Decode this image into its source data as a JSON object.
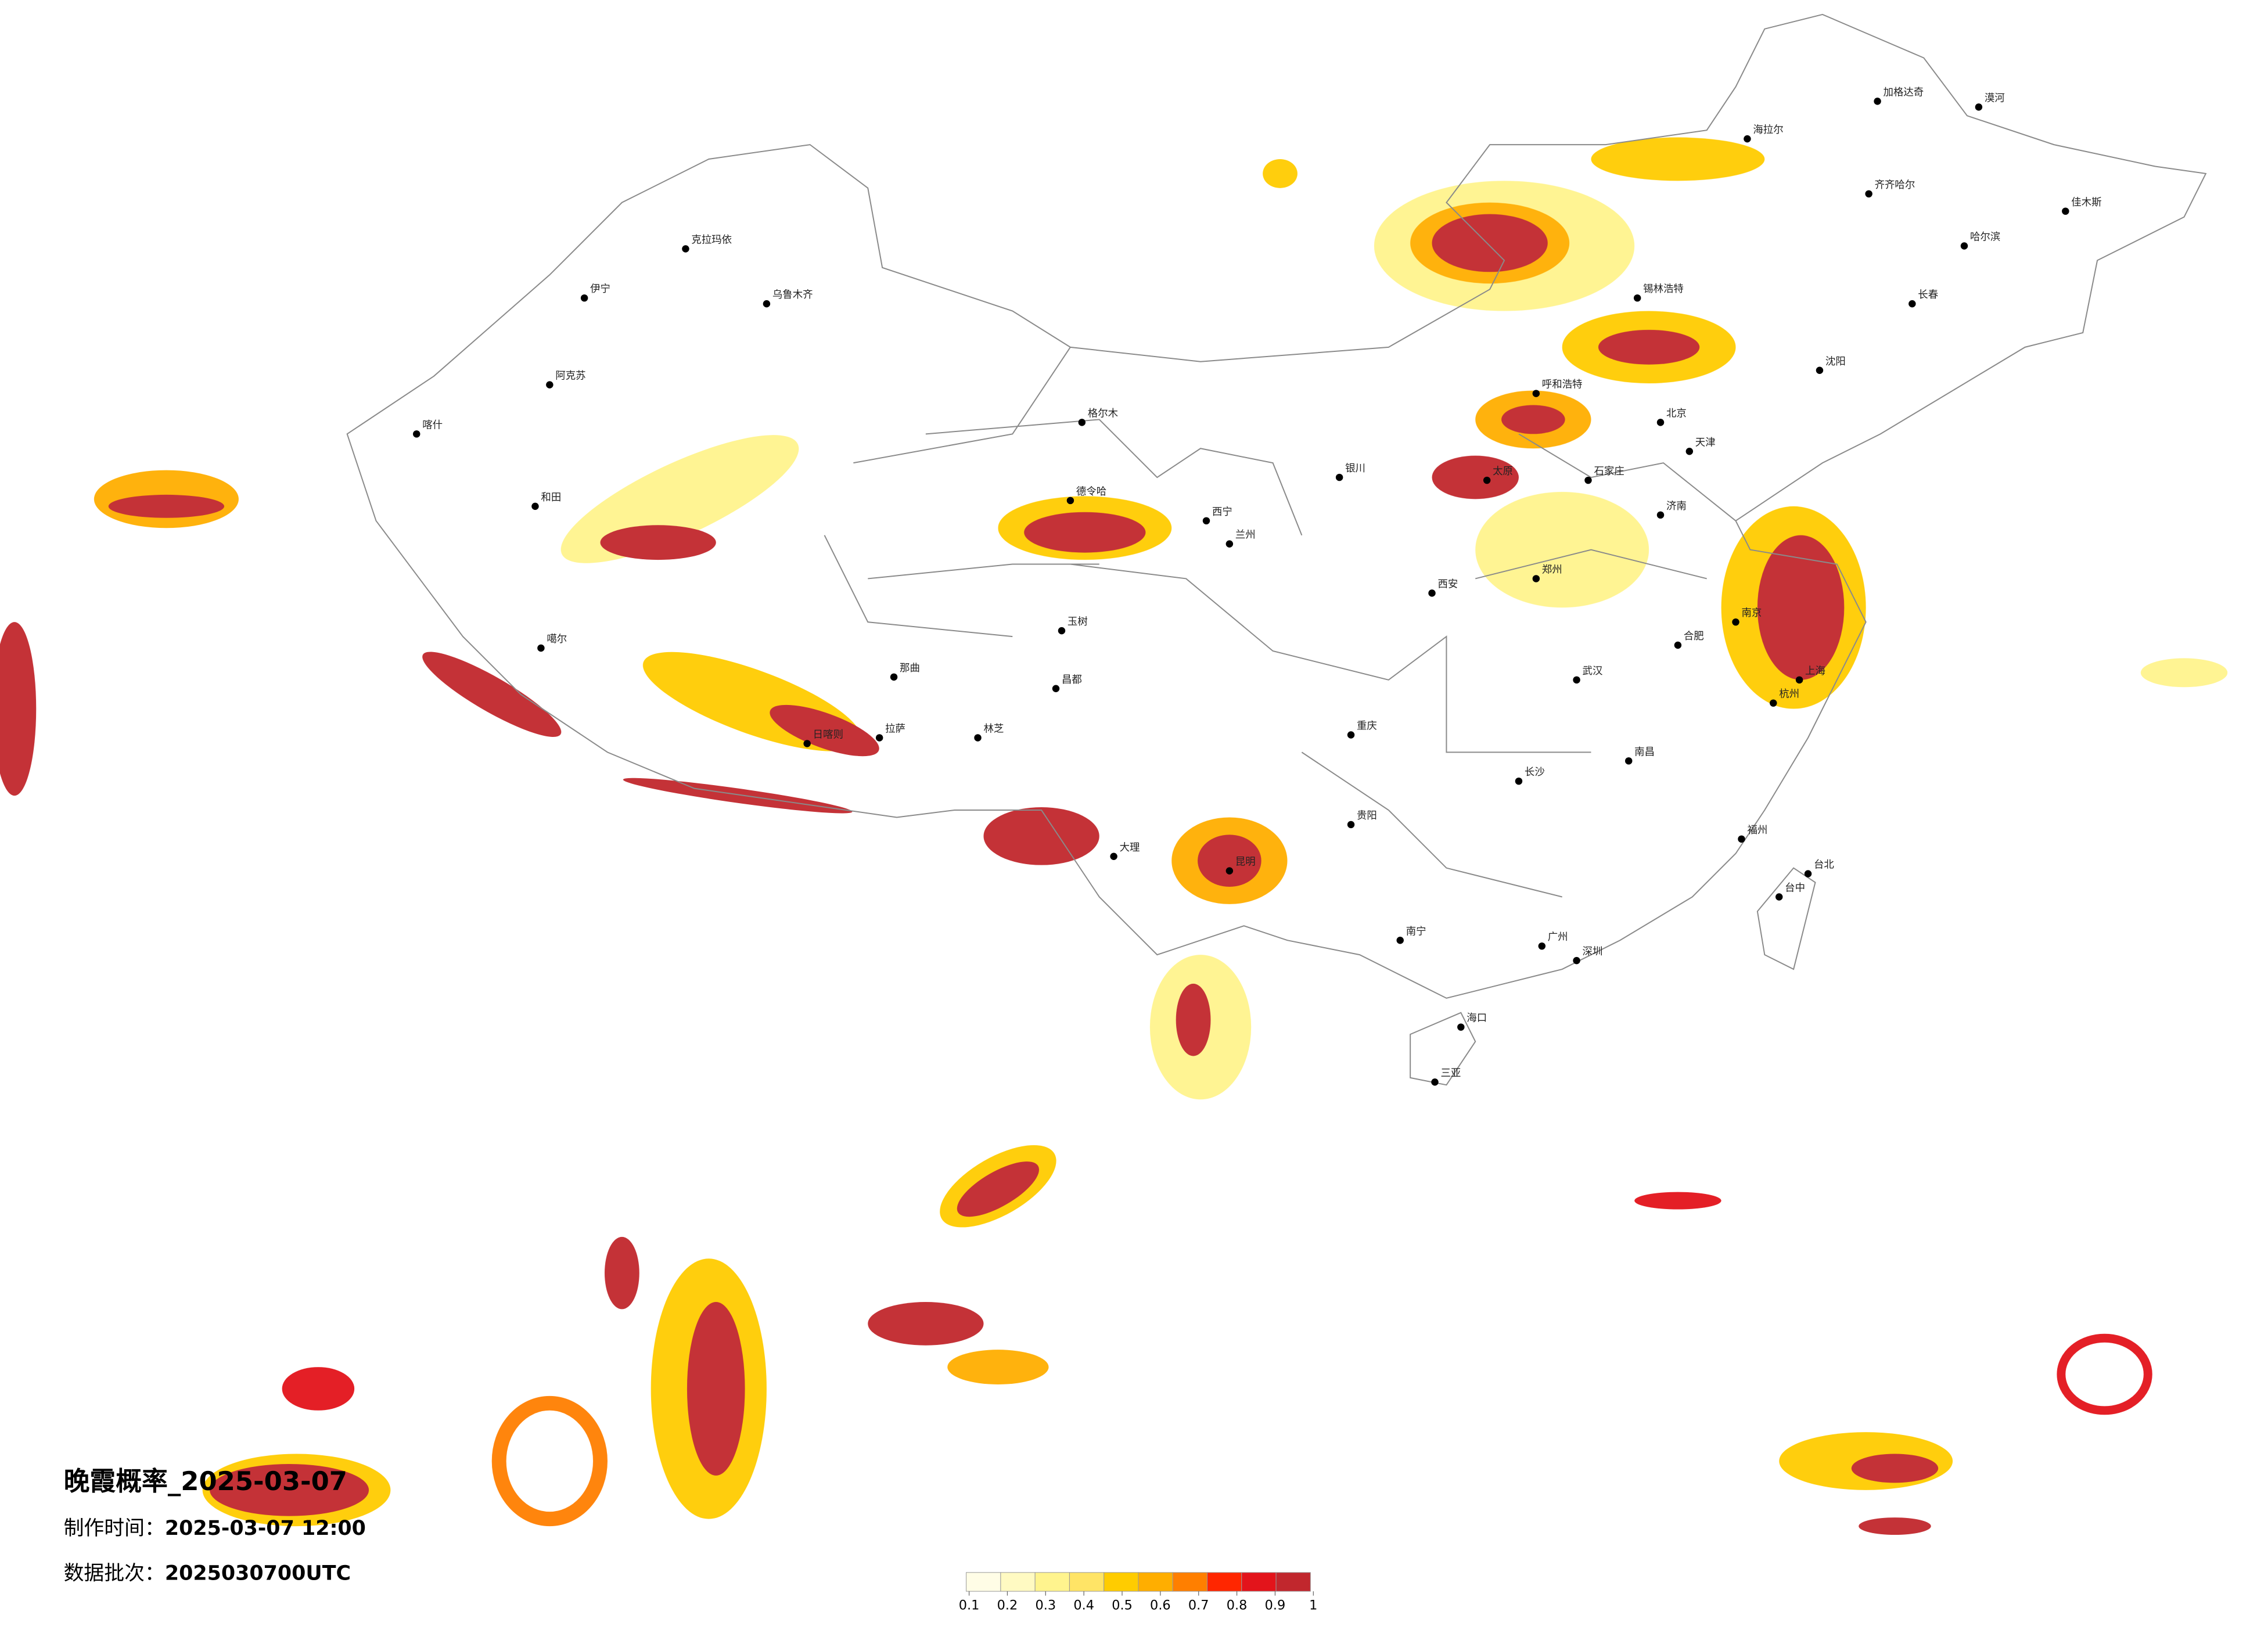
{
  "title": "晚霞概率_2025-03-07",
  "made_time": {
    "label": "制作时间：",
    "value": "2025-03-07 12:00"
  },
  "data_batch": {
    "label": "数据批次：",
    "value": "2025030700UTC"
  },
  "legend": {
    "colors": [
      "#fffde6",
      "#fffac2",
      "#fff48e",
      "#ffe466",
      "#ffcc00",
      "#ffae00",
      "#ff7f00",
      "#ff2600",
      "#e3141b",
      "#c1272d"
    ],
    "ticks": [
      0.1,
      0.2,
      0.3,
      0.4,
      0.5,
      0.6,
      0.7,
      0.8,
      0.9,
      1
    ]
  },
  "cities": [
    "漠河",
    "加格达奇",
    "海拉尔",
    "齐齐哈尔",
    "佳木斯",
    "哈尔滨",
    "长春",
    "沈阳",
    "锡林浩特",
    "呼和浩特",
    "北京",
    "天津",
    "石家庄",
    "太原",
    "济南",
    "郑州",
    "西安",
    "合肥",
    "南京",
    "上海",
    "杭州",
    "武汉",
    "南昌",
    "长沙",
    "福州",
    "台北",
    "台中",
    "广州",
    "深圳",
    "南宁",
    "海口",
    "三亚",
    "贵阳",
    "重庆",
    "昆明",
    "大理",
    "银川",
    "兰州",
    "西宁",
    "格尔木",
    "德令哈",
    "玉树",
    "昌都",
    "那曲",
    "拉萨",
    "日喀则",
    "林芝",
    "噶尔",
    "和田",
    "喀什",
    "阿克苏",
    "伊宁",
    "克拉玛依",
    "乌鲁木齐"
  ]
}
